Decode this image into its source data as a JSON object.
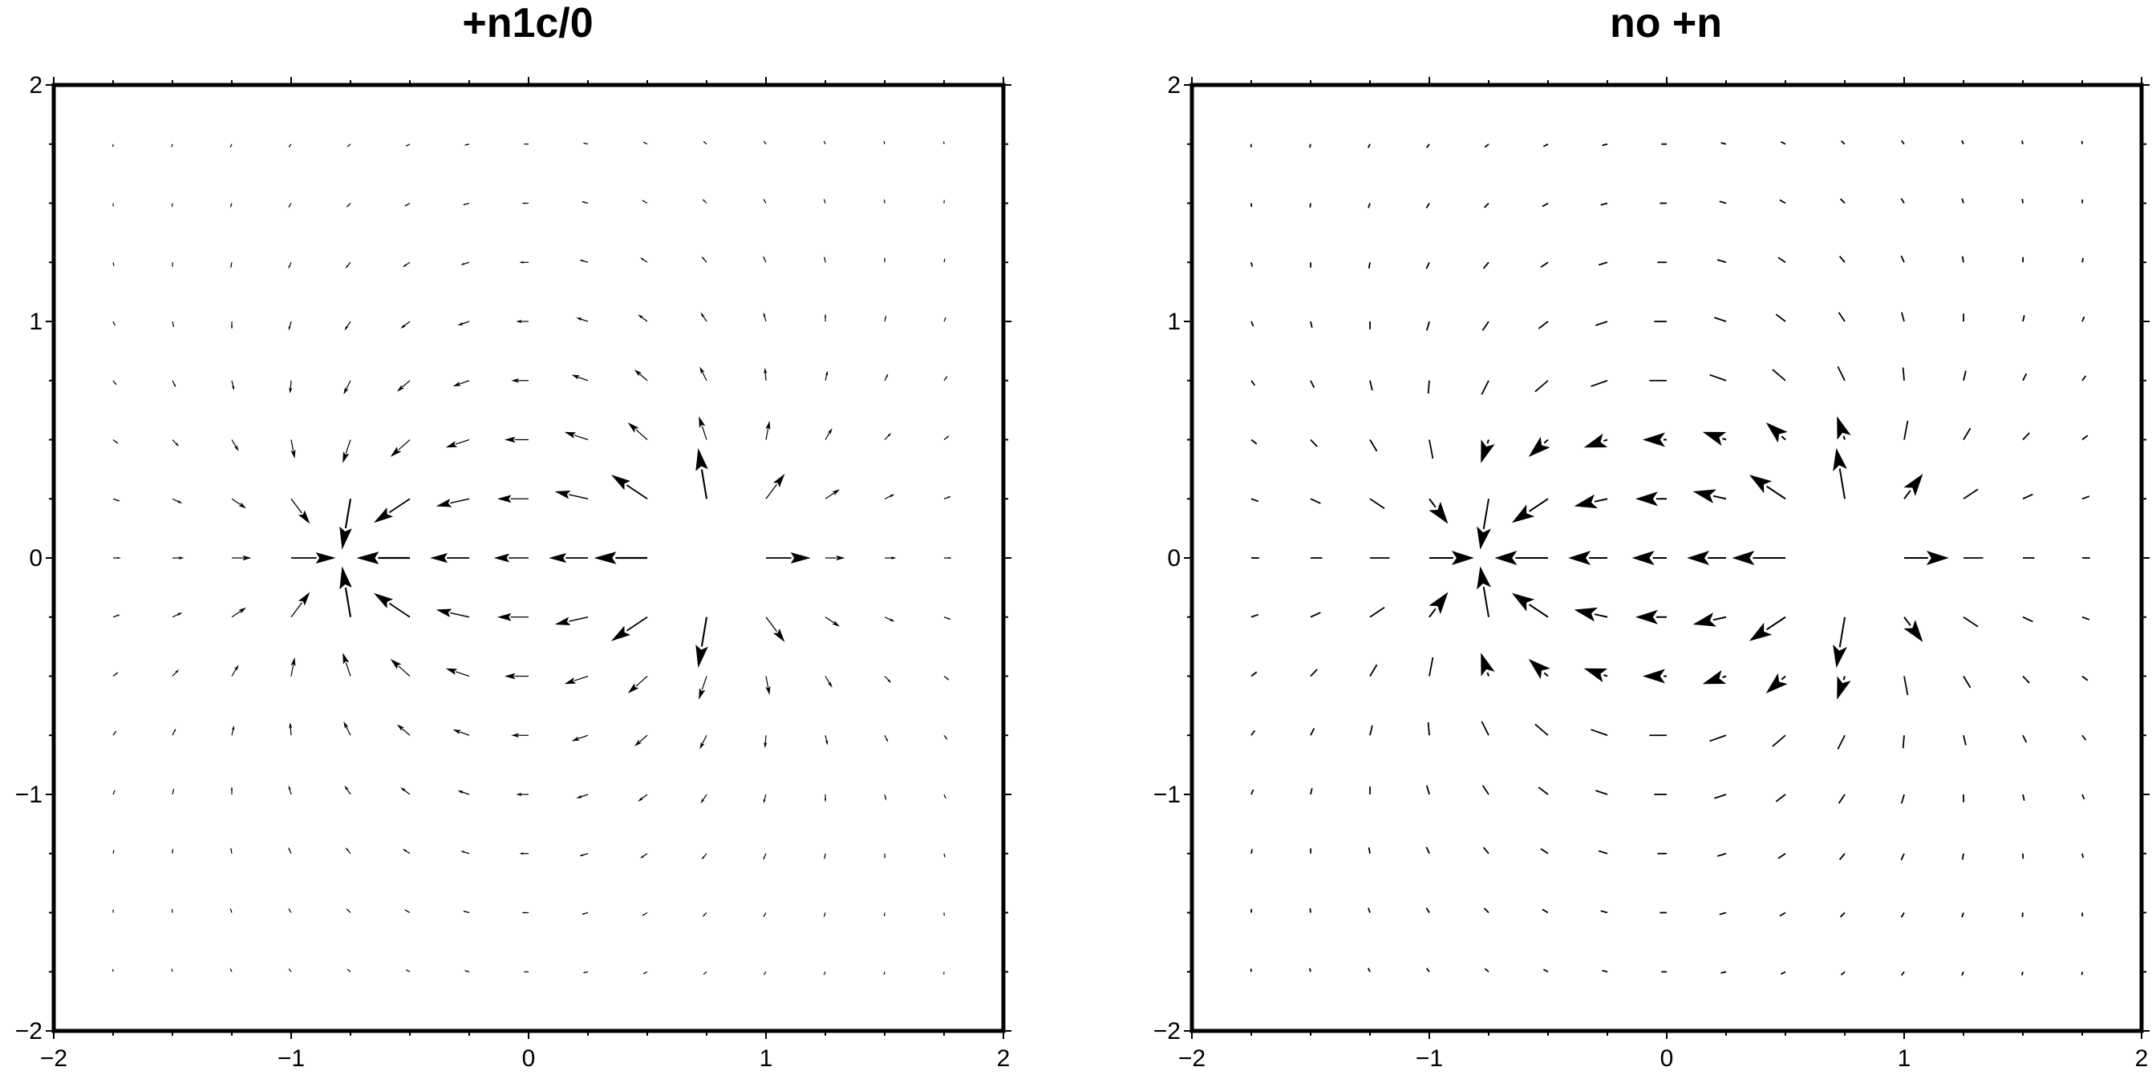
{
  "chart_data": [
    {
      "type": "vector-field",
      "title": "+n1c/0",
      "xlim": [
        -2,
        2
      ],
      "ylim": [
        -2,
        2
      ],
      "x_ticks": [
        "−2",
        "−1",
        "0",
        "1",
        "2"
      ],
      "y_ticks": [
        "−2",
        "−1",
        "0",
        "1",
        "2"
      ],
      "grid": false,
      "field": {
        "source_x": 0.75,
        "source_y": 0,
        "sink_x": -0.75,
        "sink_y": 0,
        "grid_start": -1.75,
        "grid_step": 0.25,
        "grid_count": 15
      },
      "heads": "scaled"
    },
    {
      "type": "vector-field",
      "title": "no +n",
      "xlim": [
        -2,
        2
      ],
      "ylim": [
        -2,
        2
      ],
      "x_ticks": [
        "−2",
        "−1",
        "0",
        "1",
        "2"
      ],
      "y_ticks": [
        "−2",
        "−1",
        "0",
        "1",
        "2"
      ],
      "grid": false,
      "field": {
        "source_x": 0.75,
        "source_y": 0,
        "sink_x": -0.75,
        "sink_y": 0,
        "grid_start": -1.75,
        "grid_step": 0.25,
        "grid_count": 15
      },
      "heads": "fixed"
    }
  ]
}
